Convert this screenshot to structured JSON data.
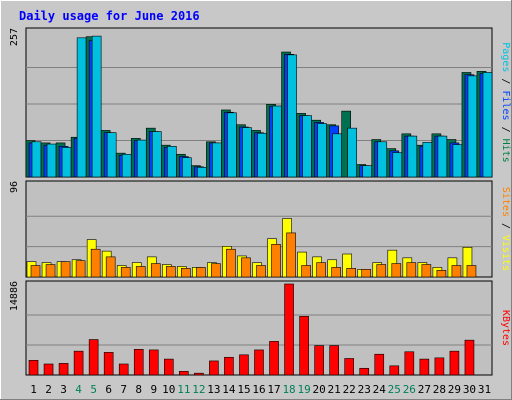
{
  "chart_data": {
    "type": "bar",
    "title": "Daily usage for June 2016",
    "categories": [
      "1",
      "2",
      "3",
      "4",
      "5",
      "6",
      "7",
      "8",
      "9",
      "10",
      "11",
      "12",
      "13",
      "14",
      "15",
      "16",
      "17",
      "18",
      "19",
      "20",
      "21",
      "22",
      "23",
      "24",
      "25",
      "26",
      "27",
      "28",
      "29",
      "30",
      "31"
    ],
    "weekend_days": [
      "4",
      "5",
      "11",
      "12",
      "18",
      "19",
      "25",
      "26"
    ],
    "panels": [
      {
        "id": "top",
        "max_label": "257",
        "ylim": [
          0,
          257
        ],
        "axis_labels": [
          {
            "text": "Pages",
            "color": "#00c0e0"
          },
          {
            "text": " / ",
            "color": "#000000"
          },
          {
            "text": "Files",
            "color": "#0040ff"
          },
          {
            "text": " / ",
            "color": "#000000"
          },
          {
            "text": "Hits",
            "color": "#008040"
          }
        ],
        "series": [
          {
            "name": "Hits",
            "color": "#007050",
            "values": [
              64,
              60,
              60,
              70,
              247,
              82,
              42,
              68,
              86,
              56,
              40,
              20,
              62,
              118,
              92,
              82,
              128,
              220,
              112,
              100,
              92,
              116,
              22,
              66,
              50,
              76,
              56,
              76,
              66,
              184,
              186
            ]
          },
          {
            "name": "Files",
            "color": "#0040ff",
            "values": [
              60,
              56,
              54,
              68,
              240,
              78,
              38,
              64,
              80,
              52,
              36,
              18,
              60,
              114,
              88,
              78,
              124,
              216,
              108,
              96,
              90,
              0,
              20,
              62,
              46,
              72,
              54,
              72,
              60,
              180,
              182
            ]
          },
          {
            "name": "Pages",
            "color": "#00c0e0",
            "values": [
              62,
              58,
              52,
              245,
              248,
              78,
              40,
              65,
              80,
              54,
              34,
              17,
              60,
              113,
              87,
              77,
              125,
              215,
              108,
              94,
              76,
              86,
              20,
              62,
              43,
              72,
              61,
              72,
              57,
              178,
              184
            ]
          }
        ]
      },
      {
        "id": "middle",
        "max_label": "96",
        "ylim": [
          0,
          96
        ],
        "axis_labels": [
          {
            "text": "Sites",
            "color": "#ff8000"
          },
          {
            "text": " / ",
            "color": "#000000"
          },
          {
            "text": "Visits",
            "color": "#ffff00"
          }
        ],
        "series": [
          {
            "name": "Visits",
            "color": "#ffff00",
            "values": [
              16,
              15,
              16,
              18,
              39,
              27,
              12,
              15,
              21,
              13,
              11,
              10,
              15,
              32,
              22,
              15,
              40,
              61,
              26,
              21,
              18,
              24,
              8,
              15,
              28,
              20,
              15,
              10,
              20,
              31,
              0
            ]
          },
          {
            "name": "Sites",
            "color": "#ff8000",
            "values": [
              12,
              13,
              16,
              17,
              29,
              21,
              10,
              11,
              14,
              11,
              9,
              10,
              14,
              29,
              20,
              12,
              34,
              46,
              12,
              15,
              10,
              9,
              8,
              13,
              14,
              15,
              13,
              7,
              12,
              12,
              0
            ]
          }
        ]
      },
      {
        "id": "bottom",
        "max_label": "14886",
        "ylim": [
          0,
          14886
        ],
        "axis_labels": [
          {
            "text": "KBytes",
            "color": "#ff0000"
          }
        ],
        "series": [
          {
            "name": "KBytes",
            "color": "#ff0000",
            "values": [
              2400,
              1800,
              1900,
              3900,
              5800,
              3700,
              1800,
              4200,
              4100,
              2600,
              600,
              300,
              2300,
              2900,
              3300,
              4100,
              5500,
              14886,
              9600,
              4800,
              4800,
              2700,
              1100,
              3400,
              1500,
              3800,
              2600,
              2800,
              3900,
              5700,
              0
            ]
          }
        ]
      }
    ]
  }
}
